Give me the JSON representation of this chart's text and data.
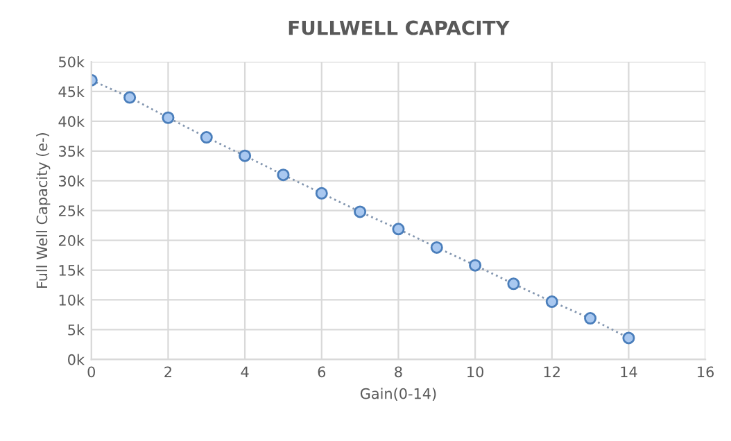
{
  "chart_data": {
    "type": "line",
    "title": "FULLWELL CAPACITY",
    "xlabel": "Gain(0-14)",
    "ylabel": "Full Well Capacity (e-)",
    "x": [
      0,
      1,
      2,
      3,
      4,
      5,
      6,
      7,
      8,
      9,
      10,
      11,
      12,
      13,
      14
    ],
    "series": [
      {
        "color": "#4a7ebb",
        "values": [
          46.9,
          44.0,
          40.6,
          37.3,
          34.2,
          31.0,
          27.9,
          24.8,
          21.9,
          18.8,
          15.8,
          12.7,
          9.7,
          6.9,
          3.6
        ]
      }
    ],
    "xlim": [
      0,
      16
    ],
    "xticks": [
      0,
      2,
      4,
      6,
      8,
      10,
      12,
      14,
      16
    ],
    "ylim": [
      0,
      50
    ],
    "yticks": [
      {
        "value": 0,
        "label": "0k"
      },
      {
        "value": 5,
        "label": "5k"
      },
      {
        "value": 10,
        "label": "10k"
      },
      {
        "value": 15,
        "label": "15k"
      },
      {
        "value": 20,
        "label": "20k"
      },
      {
        "value": 25,
        "label": "25k"
      },
      {
        "value": 30,
        "label": "30k"
      },
      {
        "value": 35,
        "label": "35k"
      },
      {
        "value": 40,
        "label": "40k"
      },
      {
        "value": 45,
        "label": "45k"
      },
      {
        "value": 50,
        "label": "50k"
      }
    ],
    "grid": true,
    "marker": "circle",
    "line_style": "dotted",
    "legend": false
  }
}
